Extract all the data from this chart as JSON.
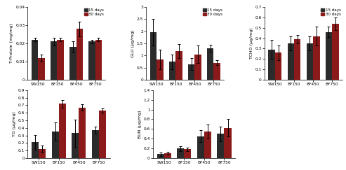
{
  "categories": [
    "SW150",
    "BF150",
    "BF450",
    "BF750"
  ],
  "color_15": "#2b2b2b",
  "color_30": "#8b1a1a",
  "subplots": [
    {
      "ylabel": "T-Protein (mg/mg)",
      "ylim": [
        0,
        0.04
      ],
      "yticks": [
        0,
        0.01,
        0.02,
        0.03,
        0.04
      ],
      "yticklabels": [
        "0",
        "0.01",
        "0.02",
        "0.03",
        "0.04"
      ],
      "values_15": [
        0.022,
        0.021,
        0.018,
        0.021
      ],
      "errors_15": [
        0.001,
        0.002,
        0.003,
        0.001
      ],
      "values_30": [
        0.012,
        0.022,
        0.028,
        0.022
      ],
      "errors_30": [
        0.002,
        0.001,
        0.004,
        0.001
      ],
      "legend": true
    },
    {
      "ylabel": "GLU (μg/mg)",
      "ylim": [
        0,
        3.0
      ],
      "yticks": [
        0,
        0.5,
        1.0,
        1.5,
        2.0,
        2.5,
        3.0
      ],
      "yticklabels": [
        "0",
        "0.5",
        "1",
        "1.5",
        "2",
        "2.5",
        "3"
      ],
      "values_15": [
        1.95,
        0.75,
        0.65,
        1.3
      ],
      "errors_15": [
        0.55,
        0.3,
        0.25,
        0.15
      ],
      "values_30": [
        0.85,
        1.18,
        1.05,
        0.7
      ],
      "errors_30": [
        0.4,
        0.28,
        0.35,
        0.1
      ],
      "legend": true
    },
    {
      "ylabel": "TCHO (μg/mg)",
      "ylim": [
        0,
        0.7
      ],
      "yticks": [
        0,
        0.1,
        0.2,
        0.3,
        0.4,
        0.5,
        0.6,
        0.7
      ],
      "yticklabels": [
        "0",
        "0.1",
        "0.2",
        "0.3",
        "0.4",
        "0.5",
        "0.6",
        "0.7"
      ],
      "values_15": [
        0.29,
        0.35,
        0.35,
        0.46
      ],
      "errors_15": [
        0.09,
        0.07,
        0.07,
        0.05
      ],
      "values_30": [
        0.26,
        0.39,
        0.42,
        0.54
      ],
      "errors_30": [
        0.07,
        0.04,
        0.09,
        0.06
      ],
      "legend": true
    },
    {
      "ylabel": "TG (μg/mg)",
      "ylim": [
        0,
        0.9
      ],
      "yticks": [
        0,
        0.1,
        0.2,
        0.3,
        0.4,
        0.5,
        0.6,
        0.7,
        0.8,
        0.9
      ],
      "yticklabels": [
        "0",
        "0.1",
        "0.2",
        "0.3",
        "0.4",
        "0.5",
        "0.6",
        "0.7",
        "0.8",
        "0.9"
      ],
      "values_15": [
        0.21,
        0.35,
        0.33,
        0.37
      ],
      "errors_15": [
        0.1,
        0.12,
        0.18,
        0.05
      ],
      "values_30": [
        0.12,
        0.72,
        0.67,
        0.63
      ],
      "errors_30": [
        0.05,
        0.05,
        0.04,
        0.03
      ],
      "legend": false
    },
    {
      "ylabel": "BUN (μg/mg)",
      "ylim": [
        0,
        1.4
      ],
      "yticks": [
        0,
        0.2,
        0.4,
        0.6,
        0.8,
        1.0,
        1.2,
        1.4
      ],
      "yticklabels": [
        "0",
        "0.2",
        "0.4",
        "0.6",
        "0.8",
        "1",
        "1.2",
        "1.4"
      ],
      "values_15": [
        0.08,
        0.2,
        0.45,
        0.5
      ],
      "errors_15": [
        0.03,
        0.05,
        0.12,
        0.15
      ],
      "values_30": [
        0.1,
        0.18,
        0.55,
        0.62
      ],
      "errors_30": [
        0.03,
        0.04,
        0.14,
        0.18
      ],
      "legend": false
    }
  ],
  "legend_labels": [
    "15 days",
    "30 days"
  ],
  "bar_width": 0.35,
  "figsize": [
    4.93,
    2.43
  ],
  "dpi": 100
}
